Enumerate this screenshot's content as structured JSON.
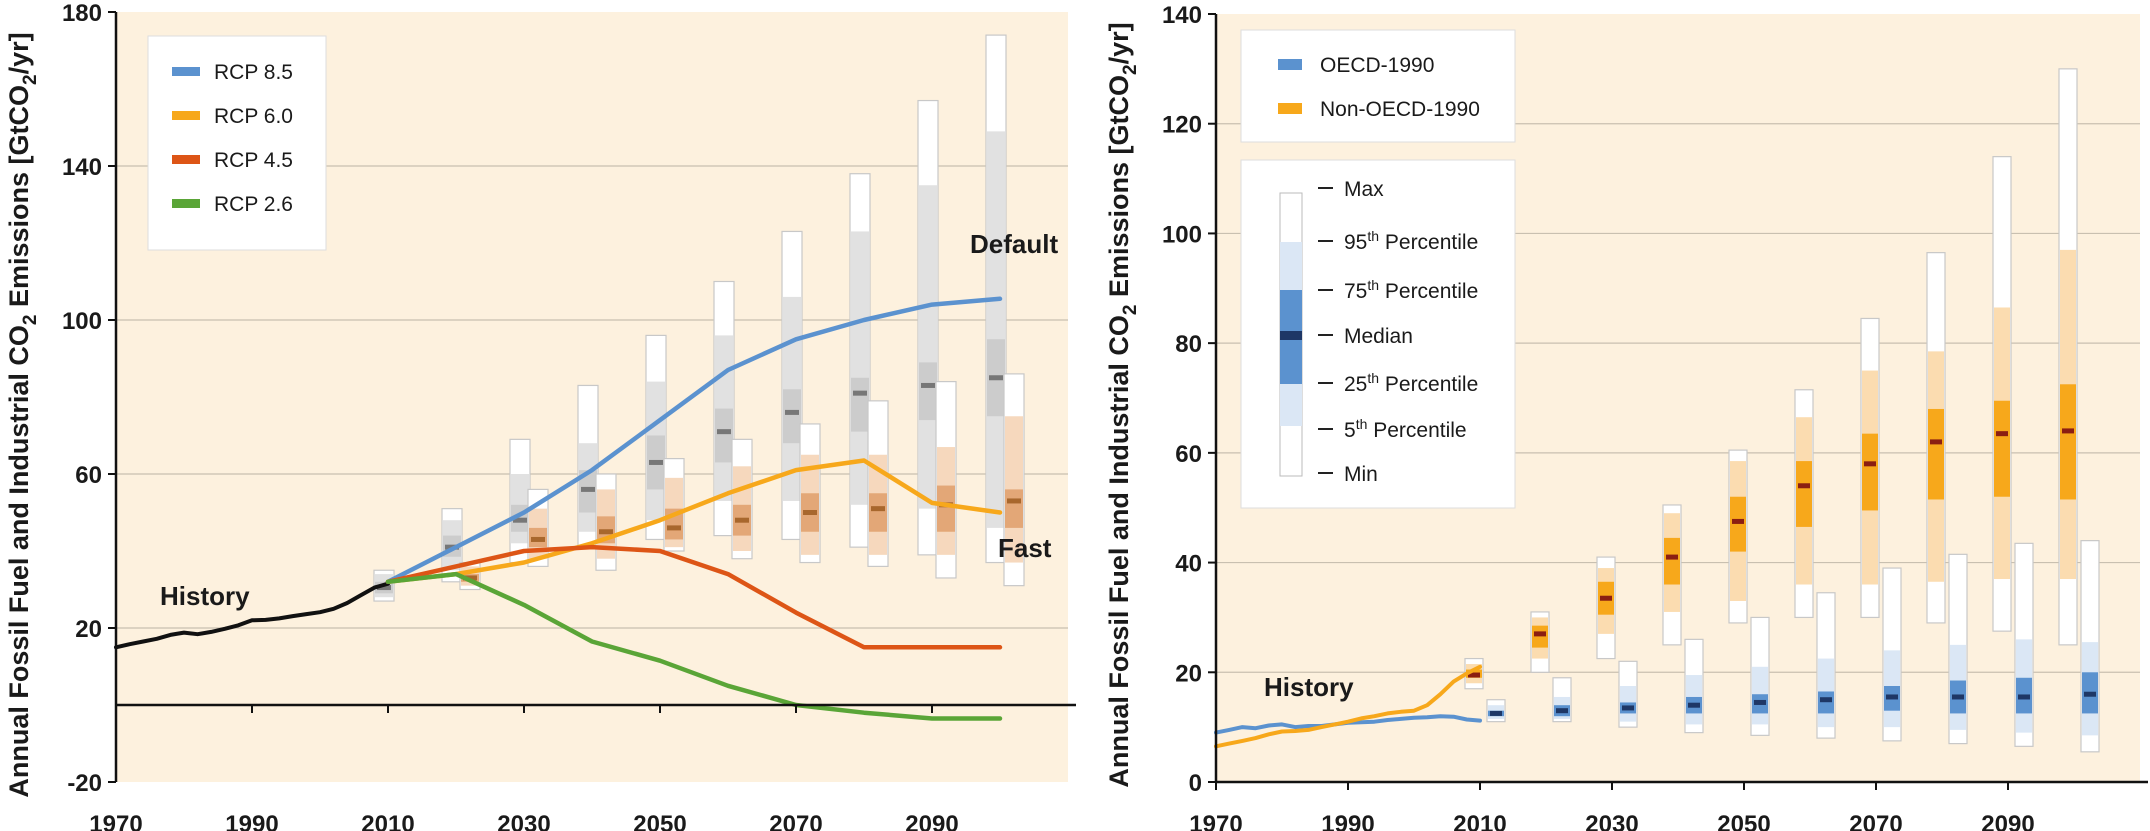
{
  "colors": {
    "panel_bg": "#fdf1de",
    "rcp85": "#5b92cf",
    "rcp60": "#f7a81b",
    "rcp45": "#dd5516",
    "rcp26": "#5aa537",
    "history": "#111111",
    "default_box_outer": "#ffffff",
    "default_box_mid": "#e1e1e1",
    "default_box_inner": "#cccccc",
    "default_box_median": "#777777",
    "fast_box_outer": "#ffffff",
    "fast_box_mid": "#f6d8bd",
    "fast_box_inner": "#e3a777",
    "fast_box_median": "#a8672d",
    "oecd": "#5b92cf",
    "oecd_light": "#dbe7f5",
    "oecd_dark": "#1e3766",
    "nonoecd": "#f7a81b",
    "nonoecd_light": "#fbdcb0",
    "nonoecd_dark": "#8b1e12"
  },
  "chart_data": [
    {
      "type": "line",
      "ylabel_main": "Annual Fossil Fuel and Industrial CO",
      "ylabel_sub": "2",
      "ylabel_end": " Emissions [GtCO",
      "ylabel_sub2": "2",
      "ylabel_tail": "/yr]",
      "xlim": [
        1970,
        2110
      ],
      "ylim": [
        -20,
        180
      ],
      "xticks": [
        "1970",
        "1990",
        "2010",
        "2030",
        "2050",
        "2070",
        "2090"
      ],
      "yticks": [
        "-20",
        "20",
        "60",
        "100",
        "140",
        "180"
      ],
      "annotations": {
        "history": "History",
        "default": "Default",
        "fast": "Fast"
      },
      "legend": [
        {
          "name": "RCP 8.5",
          "color_key": "rcp85"
        },
        {
          "name": "RCP 6.0",
          "color_key": "rcp60"
        },
        {
          "name": "RCP 4.5",
          "color_key": "rcp45"
        },
        {
          "name": "RCP 2.6",
          "color_key": "rcp26"
        }
      ],
      "history": {
        "x": [
          1970,
          1972,
          1974,
          1976,
          1978,
          1980,
          1982,
          1984,
          1986,
          1988,
          1990,
          1992,
          1994,
          1996,
          1998,
          2000,
          2002,
          2004,
          2006,
          2008,
          2010
        ],
        "y": [
          15,
          15.8,
          16.5,
          17.2,
          18.2,
          18.8,
          18.4,
          19,
          19.8,
          20.7,
          22,
          22.1,
          22.5,
          23.1,
          23.6,
          24.1,
          25,
          26.5,
          28.5,
          30.5,
          31.5
        ]
      },
      "series": [
        {
          "name": "RCP 8.5",
          "color_key": "rcp85",
          "x": [
            2010,
            2020,
            2030,
            2040,
            2050,
            2060,
            2070,
            2080,
            2090,
            2100
          ],
          "y": [
            32,
            41,
            50,
            61,
            74,
            87,
            95,
            100,
            104,
            105.5
          ]
        },
        {
          "name": "RCP 6.0",
          "color_key": "rcp60",
          "x": [
            2010,
            2020,
            2030,
            2040,
            2050,
            2060,
            2070,
            2080,
            2090,
            2100
          ],
          "y": [
            32,
            34,
            37,
            42,
            48,
            55,
            61,
            63.5,
            52.5,
            50
          ]
        },
        {
          "name": "RCP 4.5",
          "color_key": "rcp45",
          "x": [
            2010,
            2020,
            2030,
            2040,
            2050,
            2060,
            2070,
            2080,
            2090,
            2100
          ],
          "y": [
            32,
            36,
            40,
            41,
            40,
            34,
            24,
            15,
            15,
            15
          ]
        },
        {
          "name": "RCP 2.6",
          "color_key": "rcp26",
          "x": [
            2010,
            2020,
            2030,
            2040,
            2050,
            2060,
            2070,
            2080,
            2090,
            2100
          ],
          "y": [
            32,
            34,
            26,
            16.5,
            11.5,
            5,
            0,
            -2,
            -3.5,
            -3.5
          ]
        }
      ],
      "boxes_default": [
        {
          "year": 2010,
          "min": 27,
          "p5": 28,
          "p25": 29,
          "median": 30.5,
          "p75": 32,
          "p95": 34,
          "max": 35
        },
        {
          "year": 2020,
          "min": 32,
          "p5": 35,
          "p25": 38.5,
          "median": 41,
          "p75": 44,
          "p95": 48,
          "max": 51
        },
        {
          "year": 2030,
          "min": 37,
          "p5": 42,
          "p25": 45,
          "median": 48,
          "p75": 52,
          "p95": 60,
          "max": 69
        },
        {
          "year": 2040,
          "min": 41,
          "p5": 45,
          "p25": 50,
          "median": 56,
          "p75": 61,
          "p95": 68,
          "max": 83
        },
        {
          "year": 2050,
          "min": 43,
          "p5": 48,
          "p25": 56,
          "median": 63,
          "p75": 70,
          "p95": 84,
          "max": 96
        },
        {
          "year": 2060,
          "min": 44,
          "p5": 53,
          "p25": 63,
          "median": 71,
          "p75": 77,
          "p95": 96,
          "max": 110
        },
        {
          "year": 2070,
          "min": 43,
          "p5": 53,
          "p25": 68,
          "median": 76,
          "p75": 82,
          "p95": 106,
          "max": 123
        },
        {
          "year": 2080,
          "min": 41,
          "p5": 52,
          "p25": 71,
          "median": 81,
          "p75": 85,
          "p95": 123,
          "max": 138
        },
        {
          "year": 2090,
          "min": 39,
          "p5": 51,
          "p25": 74,
          "median": 83,
          "p75": 89,
          "p95": 135,
          "max": 157
        },
        {
          "year": 2100,
          "min": 37,
          "p5": 46,
          "p25": 75,
          "median": 85,
          "p75": 95,
          "p95": 149,
          "max": 174
        }
      ],
      "boxes_fast": [
        {
          "year": 2020,
          "min": 30,
          "p5": 31,
          "p25": 32,
          "median": 33,
          "p75": 34,
          "p95": 36,
          "max": 37
        },
        {
          "year": 2030,
          "min": 36,
          "p5": 38,
          "p25": 41,
          "median": 43,
          "p75": 46,
          "p95": 51,
          "max": 56
        },
        {
          "year": 2040,
          "min": 35,
          "p5": 38,
          "p25": 42,
          "median": 45,
          "p75": 49,
          "p95": 56,
          "max": 60
        },
        {
          "year": 2050,
          "min": 40,
          "p5": 41,
          "p25": 43,
          "median": 46,
          "p75": 51,
          "p95": 59,
          "max": 64
        },
        {
          "year": 2060,
          "min": 38,
          "p5": 40,
          "p25": 44,
          "median": 48,
          "p75": 52,
          "p95": 62,
          "max": 69
        },
        {
          "year": 2070,
          "min": 37,
          "p5": 39,
          "p25": 45,
          "median": 50,
          "p75": 55,
          "p95": 65,
          "max": 73
        },
        {
          "year": 2080,
          "min": 36,
          "p5": 39,
          "p25": 45,
          "median": 51,
          "p75": 55,
          "p95": 65,
          "max": 79
        },
        {
          "year": 2090,
          "min": 33,
          "p5": 39,
          "p25": 45,
          "median": 52,
          "p75": 57,
          "p95": 67,
          "max": 84
        },
        {
          "year": 2100,
          "min": 31,
          "p5": 37,
          "p25": 46,
          "median": 53,
          "p75": 56,
          "p95": 75,
          "max": 86
        }
      ]
    },
    {
      "type": "line",
      "ylabel_main": "Annual Fossil Fuel and Industrial CO",
      "ylabel_sub": "2",
      "ylabel_end": " Emissions [GtCO",
      "ylabel_sub2": "2",
      "ylabel_tail": "/yr]",
      "xlim": [
        1970,
        2110
      ],
      "ylim": [
        0,
        140
      ],
      "xticks": [
        "1970",
        "1990",
        "2010",
        "2030",
        "2050",
        "2070",
        "2090"
      ],
      "yticks": [
        "0",
        "20",
        "40",
        "60",
        "80",
        "100",
        "120",
        "140"
      ],
      "annotations": {
        "history": "History"
      },
      "legend": [
        {
          "name": "OECD-1990",
          "color_key": "oecd"
        },
        {
          "name": "Non-OECD-1990",
          "color_key": "nonoecd"
        }
      ],
      "box_legend": {
        "max": "Max",
        "p95": "95",
        "p95_sup": "th",
        "p95_tail": " Percentile",
        "p75": "75",
        "p75_sup": "th",
        "p75_tail": " Percentile",
        "median": "Median",
        "p25": "25",
        "p25_sup": "th",
        "p25_tail": " Percentile",
        "p5": "5",
        "p5_sup": "th",
        "p5_tail": " Percentile",
        "min": "Min"
      },
      "history_series": [
        {
          "name": "OECD-1990",
          "color_key": "oecd",
          "x": [
            1970,
            1972,
            1974,
            1976,
            1978,
            1980,
            1982,
            1984,
            1986,
            1988,
            1990,
            1992,
            1994,
            1996,
            1998,
            2000,
            2002,
            2004,
            2006,
            2008,
            2010
          ],
          "y": [
            9,
            9.5,
            10,
            9.8,
            10.3,
            10.5,
            10,
            10.2,
            10.2,
            10.5,
            10.8,
            10.9,
            11,
            11.3,
            11.5,
            11.7,
            11.8,
            12,
            11.9,
            11.4,
            11.2
          ]
        },
        {
          "name": "Non-OECD-1990",
          "color_key": "nonoecd",
          "x": [
            1970,
            1972,
            1974,
            1976,
            1978,
            1980,
            1982,
            1984,
            1986,
            1988,
            1990,
            1992,
            1994,
            1996,
            1998,
            2000,
            2002,
            2004,
            2006,
            2008,
            2010
          ],
          "y": [
            6.5,
            7,
            7.5,
            8,
            8.7,
            9.2,
            9.3,
            9.5,
            10,
            10.5,
            11,
            11.6,
            12,
            12.5,
            12.8,
            13,
            14,
            16,
            18.3,
            19.8,
            21
          ]
        }
      ],
      "boxes_nonoecd": [
        {
          "year": 2010,
          "min": 17,
          "p5": 18,
          "p25": 19,
          "median": 19.5,
          "p75": 20.5,
          "p95": 21.5,
          "max": 22.5
        },
        {
          "year": 2020,
          "min": 20,
          "p5": 22.5,
          "p25": 24.5,
          "median": 27,
          "p75": 28.5,
          "p95": 30,
          "max": 31
        },
        {
          "year": 2030,
          "min": 22.5,
          "p5": 27,
          "p25": 30.5,
          "median": 33.5,
          "p75": 36.5,
          "p95": 39,
          "max": 41
        },
        {
          "year": 2040,
          "min": 25,
          "p5": 31,
          "p25": 36,
          "median": 41,
          "p75": 44.5,
          "p95": 49,
          "max": 50.5
        },
        {
          "year": 2050,
          "min": 29,
          "p5": 33,
          "p25": 42,
          "median": 47.5,
          "p75": 52,
          "p95": 58.5,
          "max": 60.5
        },
        {
          "year": 2060,
          "min": 30,
          "p5": 36,
          "p25": 46.5,
          "median": 54,
          "p75": 58.5,
          "p95": 66.5,
          "max": 71.5
        },
        {
          "year": 2070,
          "min": 30,
          "p5": 36,
          "p25": 49.5,
          "median": 58,
          "p75": 63.5,
          "p95": 75,
          "max": 84.5
        },
        {
          "year": 2080,
          "min": 29,
          "p5": 36.5,
          "p25": 51.5,
          "median": 62,
          "p75": 68,
          "p95": 78.5,
          "max": 96.5
        },
        {
          "year": 2090,
          "min": 27.5,
          "p5": 37,
          "p25": 52,
          "median": 63.5,
          "p75": 69.5,
          "p95": 86.5,
          "max": 114
        },
        {
          "year": 2100,
          "min": 25,
          "p5": 37,
          "p25": 51.5,
          "median": 64,
          "p75": 72.5,
          "p95": 97,
          "max": 130
        }
      ],
      "boxes_oecd": [
        {
          "year": 2010,
          "min": 11,
          "p5": 11.5,
          "p25": 12,
          "median": 12.5,
          "p75": 13,
          "p95": 14,
          "max": 15
        },
        {
          "year": 2020,
          "min": 11,
          "p5": 11.5,
          "p25": 12,
          "median": 13,
          "p75": 14,
          "p95": 15.5,
          "max": 19
        },
        {
          "year": 2030,
          "min": 10,
          "p5": 11,
          "p25": 12.5,
          "median": 13.5,
          "p75": 14.5,
          "p95": 17.5,
          "max": 22
        },
        {
          "year": 2040,
          "min": 9,
          "p5": 10.5,
          "p25": 12.5,
          "median": 14,
          "p75": 15.5,
          "p95": 19.5,
          "max": 26
        },
        {
          "year": 2050,
          "min": 8.5,
          "p5": 10.5,
          "p25": 12.5,
          "median": 14.5,
          "p75": 16,
          "p95": 21,
          "max": 30
        },
        {
          "year": 2060,
          "min": 8,
          "p5": 10,
          "p25": 12.5,
          "median": 15,
          "p75": 16.5,
          "p95": 22.5,
          "max": 34.5
        },
        {
          "year": 2070,
          "min": 7.5,
          "p5": 10,
          "p25": 13,
          "median": 15.5,
          "p75": 17.5,
          "p95": 24,
          "max": 39
        },
        {
          "year": 2080,
          "min": 7,
          "p5": 9.5,
          "p25": 12.5,
          "median": 15.5,
          "p75": 18.5,
          "p95": 25,
          "max": 41.5
        },
        {
          "year": 2090,
          "min": 6.5,
          "p5": 9,
          "p25": 12.5,
          "median": 15.5,
          "p75": 19,
          "p95": 26,
          "max": 43.5
        },
        {
          "year": 2100,
          "min": 5.5,
          "p5": 8.5,
          "p25": 12.5,
          "median": 16,
          "p75": 20,
          "p95": 25.5,
          "max": 44
        }
      ]
    }
  ]
}
